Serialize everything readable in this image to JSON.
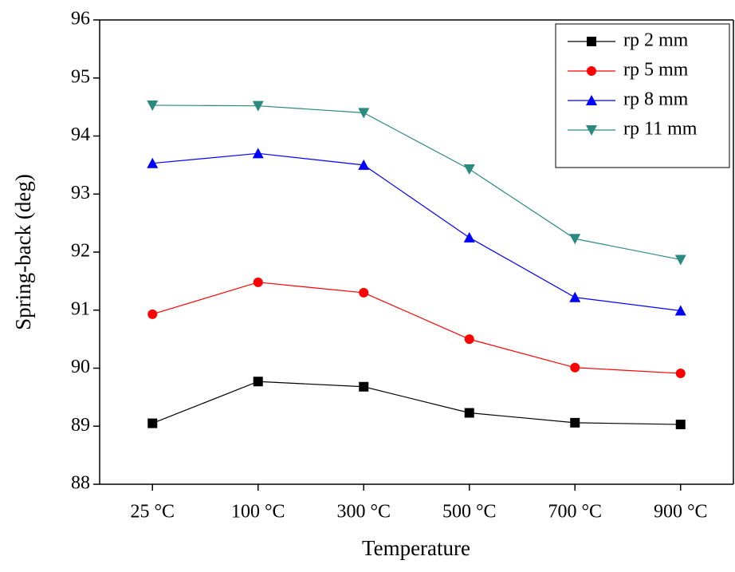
{
  "chart_data": {
    "type": "line",
    "x_label": "Temperature",
    "y_label": "Spring-back (deg)",
    "categories": [
      "25 °C",
      "100 °C",
      "300 °C",
      "500 °C",
      "700 °C",
      "900 °C"
    ],
    "series": [
      {
        "name": "rp 2 mm",
        "color": "#000000",
        "marker": "square",
        "values": [
          89.05,
          89.77,
          89.68,
          89.23,
          89.06,
          89.03
        ]
      },
      {
        "name": "rp 5 mm",
        "color": "#ff0000",
        "marker": "circle",
        "values": [
          90.93,
          91.48,
          91.3,
          90.5,
          90.01,
          89.91
        ]
      },
      {
        "name": "rp 8 mm",
        "color": "#0000ff",
        "marker": "triangle-up",
        "values": [
          93.53,
          93.7,
          93.5,
          92.25,
          91.22,
          90.99
        ]
      },
      {
        "name": "rp 11 mm",
        "color": "#2a8a80",
        "marker": "triangle-down",
        "values": [
          94.53,
          94.52,
          94.4,
          93.43,
          92.23,
          91.87
        ]
      }
    ],
    "ylim": [
      88,
      96
    ],
    "yticks": [
      88,
      89,
      90,
      91,
      92,
      93,
      94,
      95,
      96
    ],
    "legend": "top-right"
  }
}
